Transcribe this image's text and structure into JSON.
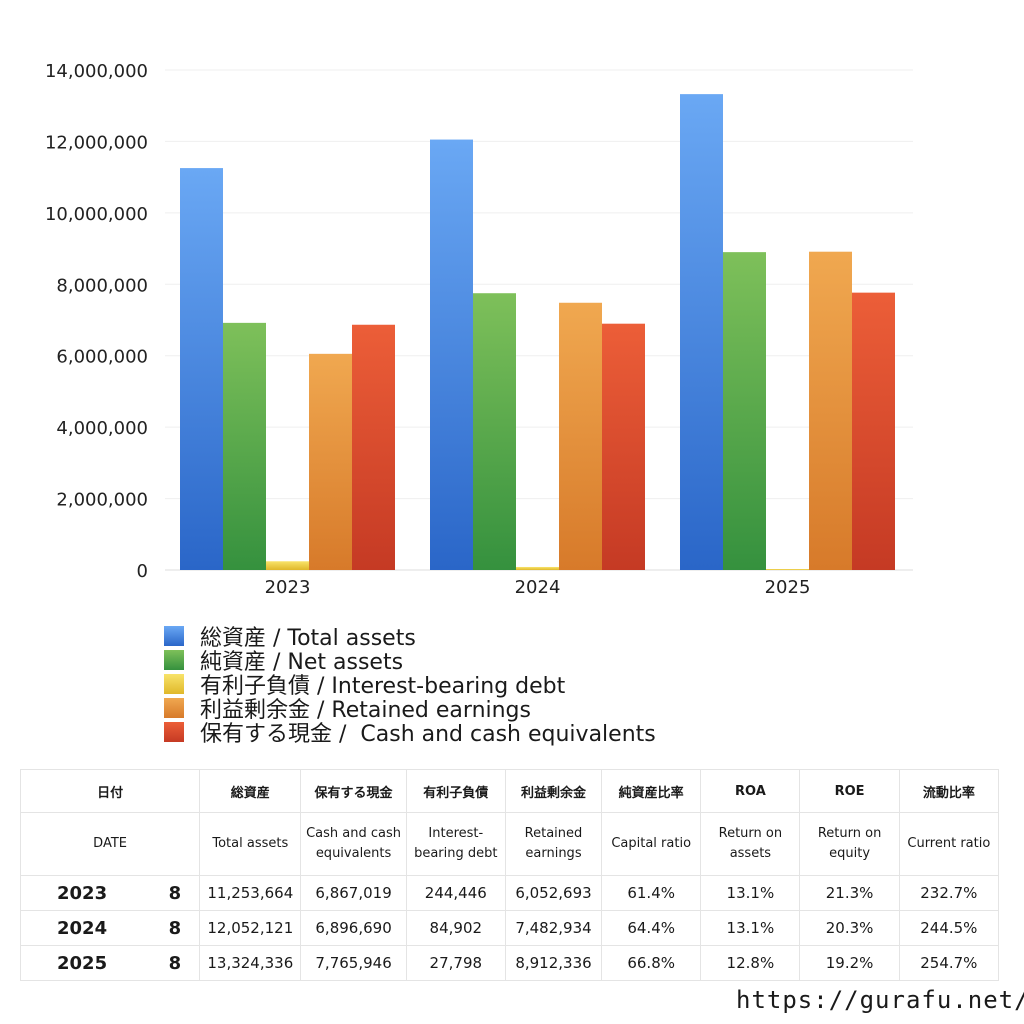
{
  "chart_data": {
    "type": "bar",
    "categories": [
      "2023",
      "2024",
      "2025"
    ],
    "series": [
      {
        "name": "総資産 / Total assets",
        "color": "#3d7fe0",
        "values": [
          11253664,
          12052121,
          13324336
        ]
      },
      {
        "name": "純資産 / Net assets",
        "color": "#4ea84a",
        "values": [
          6920000,
          7750000,
          8900000
        ]
      },
      {
        "name": "有利子負債 / Interest-bearing debt",
        "color": "#f0c93a",
        "values": [
          244446,
          84902,
          27798
        ]
      },
      {
        "name": "利益剰余金 / Retained earnings",
        "color": "#e8903a",
        "values": [
          6052693,
          7482934,
          8912336
        ]
      },
      {
        "name": "保有する現金 /  Cash and cash equivalents",
        "color": "#dd4a2a",
        "values": [
          6867019,
          6896690,
          7765946
        ]
      }
    ],
    "ylim": [
      0,
      14000000
    ],
    "yticks": [
      "0",
      "2,000,000",
      "4,000,000",
      "6,000,000",
      "8,000,000",
      "10,000,000",
      "12,000,000",
      "14,000,000"
    ],
    "grid": true,
    "legend_placement": "bottom"
  },
  "table": {
    "headers_jp": [
      "日付",
      "総資産",
      "保有する現金",
      "有利子負債",
      "利益剰余金",
      "純資産比率",
      "ROA",
      "ROE",
      "流動比率"
    ],
    "headers_en": [
      "DATE",
      "Total assets",
      "Cash and cash equivalents",
      "Interest-bearing debt",
      "Retained earnings",
      "Capital ratio",
      "Return on assets",
      "Return on equity",
      "Current ratio"
    ],
    "rows": [
      {
        "year": "2023",
        "month": "8",
        "total_assets": "11,253,664",
        "cash": "6,867,019",
        "debt": "244,446",
        "retained": "6,052,693",
        "capital_ratio": "61.4%",
        "roa": "13.1%",
        "roe": "21.3%",
        "current_ratio": "232.7%"
      },
      {
        "year": "2024",
        "month": "8",
        "total_assets": "12,052,121",
        "cash": "6,896,690",
        "debt": "84,902",
        "retained": "7,482,934",
        "capital_ratio": "64.4%",
        "roa": "13.1%",
        "roe": "20.3%",
        "current_ratio": "244.5%"
      },
      {
        "year": "2025",
        "month": "8",
        "total_assets": "13,324,336",
        "cash": "7,765,946",
        "debt": "27,798",
        "retained": "8,912,336",
        "capital_ratio": "66.8%",
        "roa": "12.8%",
        "roe": "19.2%",
        "current_ratio": "254.7%"
      }
    ]
  },
  "footer": {
    "url": "https://gurafu.net/"
  }
}
